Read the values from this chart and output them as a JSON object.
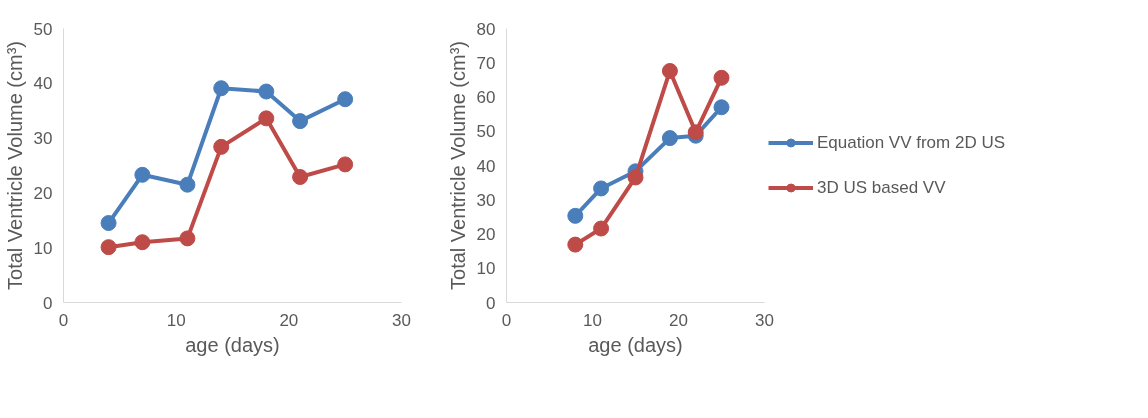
{
  "chart_data": [
    {
      "type": "line",
      "xlabel": "age (days)",
      "ylabel": "Total Ventricle Volume (cm³)",
      "xlim": [
        0,
        30
      ],
      "xticks": [
        0,
        10,
        20,
        30
      ],
      "ylim": [
        0,
        50
      ],
      "yticks": [
        0,
        10,
        20,
        30,
        40,
        50
      ],
      "grid": false,
      "marker": "circle",
      "legend": false,
      "series": [
        {
          "color": "#4a7ebb",
          "x": [
            4,
            7,
            11,
            14,
            18,
            21,
            25
          ],
          "values": [
            14.5,
            23.3,
            21.5,
            39.1,
            38.5,
            33.1,
            37.1
          ]
        },
        {
          "color": "#be4b48",
          "x": [
            4,
            7,
            11,
            14,
            18,
            21,
            25
          ],
          "values": [
            10.1,
            11.0,
            11.7,
            28.4,
            33.6,
            22.9,
            25.2
          ]
        }
      ]
    },
    {
      "type": "line",
      "xlabel": "age (days)",
      "ylabel": "Total Ventricle Volume (cm³)",
      "xlim": [
        0,
        30
      ],
      "xticks": [
        0,
        10,
        20,
        30
      ],
      "ylim": [
        0,
        80
      ],
      "yticks": [
        0,
        10,
        20,
        30,
        40,
        50,
        60,
        70,
        80
      ],
      "grid": false,
      "marker": "circle",
      "legend": "right",
      "series": [
        {
          "name": "Equation VV from 2D US",
          "color": "#4a7ebb",
          "x": [
            8,
            11,
            15,
            19,
            22,
            25
          ],
          "values": [
            25.3,
            33.3,
            38.3,
            48.0,
            48.7,
            57.0
          ]
        },
        {
          "name": "3D US based VV",
          "color": "#be4b48",
          "x": [
            8,
            11,
            15,
            19,
            22,
            25
          ],
          "values": [
            16.9,
            21.6,
            36.5,
            67.6,
            49.7,
            65.6
          ]
        }
      ]
    }
  ]
}
